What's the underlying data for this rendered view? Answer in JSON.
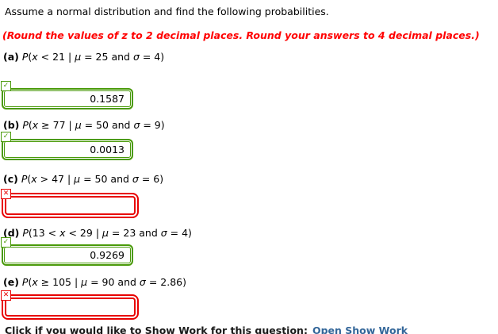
{
  "page": {
    "intro": "Assume a normal distribution and find the following probabilities.",
    "note": "(Round the values of z to 2 decimal places. Round your answers to 4 decimal places.)"
  },
  "icons": {
    "correct": "✓",
    "incorrect": "✕"
  },
  "colors": {
    "correct_green": "#4a9a0a",
    "incorrect_red": "#e80000",
    "note_red": "#ff0000",
    "link_blue": "#336699"
  },
  "parts": [
    {
      "label": "(a)",
      "formula": [
        {
          "i": 1,
          "t": "P"
        },
        {
          "i": 0,
          "t": "("
        },
        {
          "i": 1,
          "t": "x"
        },
        {
          "i": 0,
          "t": " < 21 | "
        },
        {
          "i": 1,
          "t": "μ"
        },
        {
          "i": 0,
          "t": " = 25 and "
        },
        {
          "i": 1,
          "t": "σ"
        },
        {
          "i": 0,
          "t": " = 4)"
        }
      ],
      "answer": {
        "value": "0.1587",
        "status": "correct"
      }
    },
    {
      "label": "(b)",
      "formula": [
        {
          "i": 1,
          "t": "P"
        },
        {
          "i": 0,
          "t": "("
        },
        {
          "i": 1,
          "t": "x"
        },
        {
          "i": 0,
          "t": " ≥ 77 | "
        },
        {
          "i": 1,
          "t": "μ"
        },
        {
          "i": 0,
          "t": " = 50 and "
        },
        {
          "i": 1,
          "t": "σ"
        },
        {
          "i": 0,
          "t": " = 9)"
        }
      ],
      "answer": {
        "value": "0.0013",
        "status": "correct"
      }
    },
    {
      "label": "(c)",
      "formula": [
        {
          "i": 1,
          "t": "P"
        },
        {
          "i": 0,
          "t": "("
        },
        {
          "i": 1,
          "t": "x"
        },
        {
          "i": 0,
          "t": " > 47 | "
        },
        {
          "i": 1,
          "t": "μ"
        },
        {
          "i": 0,
          "t": " = 50 and "
        },
        {
          "i": 1,
          "t": "σ"
        },
        {
          "i": 0,
          "t": " = 6)"
        }
      ],
      "answer": {
        "value": "",
        "status": "incorrect"
      }
    },
    {
      "label": "(d)",
      "formula": [
        {
          "i": 1,
          "t": "P"
        },
        {
          "i": 0,
          "t": "(13 < "
        },
        {
          "i": 1,
          "t": "x"
        },
        {
          "i": 0,
          "t": " < 29 | "
        },
        {
          "i": 1,
          "t": "μ"
        },
        {
          "i": 0,
          "t": " = 23 and "
        },
        {
          "i": 1,
          "t": "σ"
        },
        {
          "i": 0,
          "t": " = 4)"
        }
      ],
      "answer": {
        "value": "0.9269",
        "status": "correct"
      }
    },
    {
      "label": "(e)",
      "formula": [
        {
          "i": 1,
          "t": "P"
        },
        {
          "i": 0,
          "t": "("
        },
        {
          "i": 1,
          "t": "x"
        },
        {
          "i": 0,
          "t": " ≥ 105 | "
        },
        {
          "i": 1,
          "t": "μ"
        },
        {
          "i": 0,
          "t": " = 90 and "
        },
        {
          "i": 1,
          "t": "σ"
        },
        {
          "i": 0,
          "t": " = 2.86)"
        }
      ],
      "answer": {
        "value": "",
        "status": "incorrect"
      }
    }
  ],
  "footer": {
    "prompt": "Click if you would like to Show Work for this question:",
    "link": "Open Show Work"
  }
}
